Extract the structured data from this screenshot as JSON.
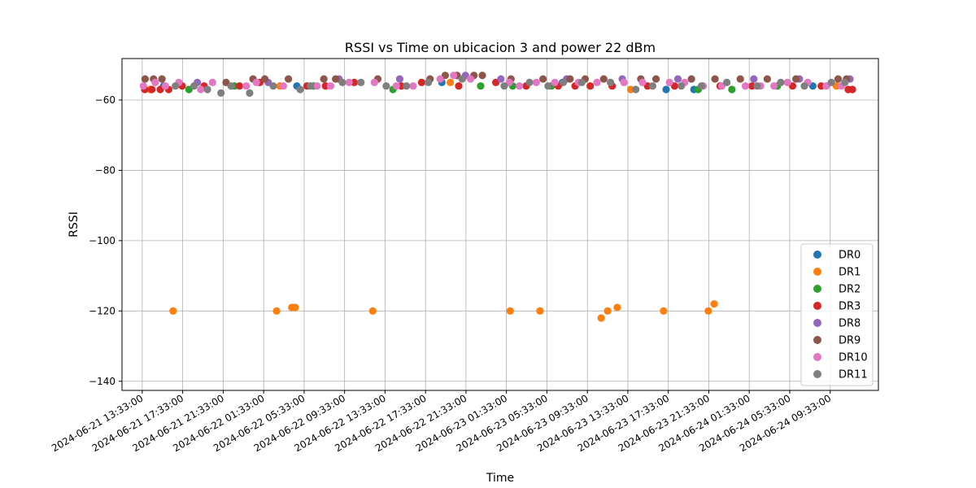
{
  "chart_data": {
    "type": "scatter",
    "title": "RSSI vs Time on ubicacion 3 and power 22 dBm",
    "xlabel": "Time",
    "ylabel": "RSSI",
    "ylim": [
      -142.6,
      -48.2
    ],
    "yticks": [
      -60,
      -80,
      -100,
      -120,
      -140
    ],
    "xlim": [
      "2024-06-21 11:33:00",
      "2024-06-24 14:19:00"
    ],
    "xticks": [
      "2024-06-21 13:33:00",
      "2024-06-21 17:33:00",
      "2024-06-21 21:33:00",
      "2024-06-22 01:33:00",
      "2024-06-22 05:33:00",
      "2024-06-22 09:33:00",
      "2024-06-22 13:33:00",
      "2024-06-22 17:33:00",
      "2024-06-22 21:33:00",
      "2024-06-23 01:33:00",
      "2024-06-23 05:33:00",
      "2024-06-23 09:33:00",
      "2024-06-23 13:33:00",
      "2024-06-23 17:33:00",
      "2024-06-23 21:33:00",
      "2024-06-24 01:33:00",
      "2024-06-24 05:33:00",
      "2024-06-24 09:33:00"
    ],
    "grid": true,
    "legend_position": "lower-right",
    "series": [
      {
        "name": "DR0",
        "color": "#1f77b4",
        "points": [
          [
            "2024-06-21 15:40:00",
            -56
          ],
          [
            "2024-06-22 04:50:00",
            -56
          ],
          [
            "2024-06-22 19:10:00",
            -55
          ],
          [
            "2024-06-23 07:05:00",
            -55
          ],
          [
            "2024-06-23 17:20:00",
            -57
          ],
          [
            "2024-06-23 20:05:00",
            -57
          ],
          [
            "2024-06-24 07:50:00",
            -56
          ]
        ]
      },
      {
        "name": "DR1",
        "color": "#ff7f0e",
        "points": [
          [
            "2024-06-21 16:36:00",
            -120
          ],
          [
            "2024-06-22 02:50:00",
            -120
          ],
          [
            "2024-06-22 04:20:00",
            -119
          ],
          [
            "2024-06-22 04:40:00",
            -119
          ],
          [
            "2024-06-22 12:20:00",
            -120
          ],
          [
            "2024-06-23 01:55:00",
            -120
          ],
          [
            "2024-06-23 04:52:00",
            -120
          ],
          [
            "2024-06-23 10:55:00",
            -122
          ],
          [
            "2024-06-23 11:33:00",
            -120
          ],
          [
            "2024-06-23 12:30:00",
            -119
          ],
          [
            "2024-06-23 17:05:00",
            -120
          ],
          [
            "2024-06-23 21:30:00",
            -120
          ],
          [
            "2024-06-23 22:05:00",
            -118
          ],
          [
            "2024-06-21 14:20:00",
            -57
          ],
          [
            "2024-06-22 03:10:00",
            -56
          ],
          [
            "2024-06-22 20:00:00",
            -55
          ],
          [
            "2024-06-23 13:50:00",
            -57
          ],
          [
            "2024-06-24 10:10:00",
            -56
          ]
        ]
      },
      {
        "name": "DR2",
        "color": "#2ca02c",
        "points": [
          [
            "2024-06-21 18:10:00",
            -57
          ],
          [
            "2024-06-21 22:40:00",
            -56
          ],
          [
            "2024-06-22 06:30:00",
            -56
          ],
          [
            "2024-06-22 14:20:00",
            -57
          ],
          [
            "2024-06-22 23:00:00",
            -56
          ],
          [
            "2024-06-23 02:10:00",
            -56
          ],
          [
            "2024-06-23 06:00:00",
            -56
          ],
          [
            "2024-06-23 20:30:00",
            -57
          ],
          [
            "2024-06-23 23:50:00",
            -57
          ],
          [
            "2024-06-24 04:20:00",
            -56
          ]
        ]
      },
      {
        "name": "DR3",
        "color": "#d62728",
        "points": [
          [
            "2024-06-21 13:48:00",
            -57
          ],
          [
            "2024-06-21 14:30:00",
            -57
          ],
          [
            "2024-06-21 15:20:00",
            -57
          ],
          [
            "2024-06-21 16:10:00",
            -57
          ],
          [
            "2024-06-21 17:30:00",
            -56
          ],
          [
            "2024-06-21 19:40:00",
            -56
          ],
          [
            "2024-06-21 23:10:00",
            -56
          ],
          [
            "2024-06-22 01:10:00",
            -55
          ],
          [
            "2024-06-22 05:50:00",
            -56
          ],
          [
            "2024-06-22 07:40:00",
            -56
          ],
          [
            "2024-06-22 10:30:00",
            -55
          ],
          [
            "2024-06-22 15:10:00",
            -56
          ],
          [
            "2024-06-22 17:10:00",
            -55
          ],
          [
            "2024-06-22 20:50:00",
            -56
          ],
          [
            "2024-06-23 00:30:00",
            -55
          ],
          [
            "2024-06-23 03:30:00",
            -56
          ],
          [
            "2024-06-23 06:40:00",
            -56
          ],
          [
            "2024-06-23 08:20:00",
            -56
          ],
          [
            "2024-06-23 09:50:00",
            -56
          ],
          [
            "2024-06-23 12:00:00",
            -56
          ],
          [
            "2024-06-23 15:30:00",
            -56
          ],
          [
            "2024-06-23 18:10:00",
            -56
          ],
          [
            "2024-06-23 22:40:00",
            -56
          ],
          [
            "2024-06-24 01:50:00",
            -56
          ],
          [
            "2024-06-24 05:50:00",
            -56
          ],
          [
            "2024-06-24 08:40:00",
            -56
          ],
          [
            "2024-06-24 11:45:00",
            -57
          ],
          [
            "2024-06-24 11:20:00",
            -57
          ]
        ]
      },
      {
        "name": "DR8",
        "color": "#9467bd",
        "points": [
          [
            "2024-06-21 19:00:00",
            -55
          ],
          [
            "2024-06-22 02:00:00",
            -55
          ],
          [
            "2024-06-22 09:00:00",
            -54
          ],
          [
            "2024-06-22 15:00:00",
            -54
          ],
          [
            "2024-06-22 21:30:00",
            -53
          ],
          [
            "2024-06-23 01:00:00",
            -54
          ],
          [
            "2024-06-23 07:30:00",
            -54
          ],
          [
            "2024-06-23 13:00:00",
            -54
          ],
          [
            "2024-06-23 18:30:00",
            -54
          ],
          [
            "2024-06-24 02:00:00",
            -54
          ],
          [
            "2024-06-24 06:30:00",
            -54
          ],
          [
            "2024-06-24 11:30:00",
            -54
          ]
        ]
      },
      {
        "name": "DR9",
        "color": "#8c564b",
        "points": [
          [
            "2024-06-21 13:50:00",
            -54
          ],
          [
            "2024-06-21 14:40:00",
            -54
          ],
          [
            "2024-06-21 15:30:00",
            -54
          ],
          [
            "2024-06-21 21:50:00",
            -55
          ],
          [
            "2024-06-22 00:30:00",
            -54
          ],
          [
            "2024-06-22 01:40:00",
            -54
          ],
          [
            "2024-06-22 04:00:00",
            -54
          ],
          [
            "2024-06-22 07:30:00",
            -54
          ],
          [
            "2024-06-22 08:40:00",
            -54
          ],
          [
            "2024-06-22 12:50:00",
            -54
          ],
          [
            "2024-06-22 18:00:00",
            -54
          ],
          [
            "2024-06-22 19:30:00",
            -53
          ],
          [
            "2024-06-22 20:40:00",
            -53
          ],
          [
            "2024-06-22 22:20:00",
            -53
          ],
          [
            "2024-06-22 23:10:00",
            -53
          ],
          [
            "2024-06-23 02:00:00",
            -54
          ],
          [
            "2024-06-23 05:10:00",
            -54
          ],
          [
            "2024-06-23 07:50:00",
            -54
          ],
          [
            "2024-06-23 09:20:00",
            -54
          ],
          [
            "2024-06-23 11:10:00",
            -54
          ],
          [
            "2024-06-23 14:50:00",
            -54
          ],
          [
            "2024-06-23 16:20:00",
            -54
          ],
          [
            "2024-06-23 19:50:00",
            -54
          ],
          [
            "2024-06-23 22:10:00",
            -54
          ],
          [
            "2024-06-24 00:40:00",
            -54
          ],
          [
            "2024-06-24 03:20:00",
            -54
          ],
          [
            "2024-06-24 06:10:00",
            -54
          ],
          [
            "2024-06-24 10:20:00",
            -54
          ],
          [
            "2024-06-24 11:10:00",
            -54
          ]
        ]
      },
      {
        "name": "DR10",
        "color": "#e377c2",
        "points": [
          [
            "2024-06-21 13:40:00",
            -56
          ],
          [
            "2024-06-21 14:50:00",
            -55
          ],
          [
            "2024-06-21 15:50:00",
            -56
          ],
          [
            "2024-06-21 17:10:00",
            -55
          ],
          [
            "2024-06-21 19:20:00",
            -57
          ],
          [
            "2024-06-21 20:30:00",
            -55
          ],
          [
            "2024-06-21 23:50:00",
            -56
          ],
          [
            "2024-06-22 00:50:00",
            -55
          ],
          [
            "2024-06-22 03:30:00",
            -56
          ],
          [
            "2024-06-22 06:50:00",
            -56
          ],
          [
            "2024-06-22 08:10:00",
            -56
          ],
          [
            "2024-06-22 10:00:00",
            -55
          ],
          [
            "2024-06-22 12:30:00",
            -55
          ],
          [
            "2024-06-22 14:40:00",
            -56
          ],
          [
            "2024-06-22 16:20:00",
            -56
          ],
          [
            "2024-06-22 19:00:00",
            -54
          ],
          [
            "2024-06-22 20:20:00",
            -53
          ],
          [
            "2024-06-22 22:00:00",
            -54
          ],
          [
            "2024-06-23 01:50:00",
            -55
          ],
          [
            "2024-06-23 02:50:00",
            -56
          ],
          [
            "2024-06-23 04:30:00",
            -55
          ],
          [
            "2024-06-23 06:20:00",
            -55
          ],
          [
            "2024-06-23 08:40:00",
            -55
          ],
          [
            "2024-06-23 10:30:00",
            -55
          ],
          [
            "2024-06-23 13:10:00",
            -55
          ],
          [
            "2024-06-23 15:00:00",
            -55
          ],
          [
            "2024-06-23 17:40:00",
            -55
          ],
          [
            "2024-06-23 19:10:00",
            -55
          ],
          [
            "2024-06-23 21:00:00",
            -56
          ],
          [
            "2024-06-23 22:50:00",
            -56
          ],
          [
            "2024-06-24 01:10:00",
            -56
          ],
          [
            "2024-06-24 02:40:00",
            -56
          ],
          [
            "2024-06-24 04:00:00",
            -56
          ],
          [
            "2024-06-24 05:20:00",
            -55
          ],
          [
            "2024-06-24 07:20:00",
            -55
          ],
          [
            "2024-06-24 09:10:00",
            -56
          ],
          [
            "2024-06-24 10:40:00",
            -56
          ]
        ]
      },
      {
        "name": "DR11",
        "color": "#7f7f7f",
        "points": [
          [
            "2024-06-21 16:50:00",
            -56
          ],
          [
            "2024-06-21 18:40:00",
            -56
          ],
          [
            "2024-06-21 20:00:00",
            -57
          ],
          [
            "2024-06-21 21:20:00",
            -58
          ],
          [
            "2024-06-21 22:20:00",
            -56
          ],
          [
            "2024-06-22 00:10:00",
            -58
          ],
          [
            "2024-06-22 02:30:00",
            -56
          ],
          [
            "2024-06-22 05:10:00",
            -57
          ],
          [
            "2024-06-22 06:10:00",
            -56
          ],
          [
            "2024-06-22 09:20:00",
            -55
          ],
          [
            "2024-06-22 11:10:00",
            -55
          ],
          [
            "2024-06-22 13:40:00",
            -56
          ],
          [
            "2024-06-22 15:40:00",
            -56
          ],
          [
            "2024-06-22 17:50:00",
            -55
          ],
          [
            "2024-06-22 21:10:00",
            -54
          ],
          [
            "2024-06-23 01:20:00",
            -56
          ],
          [
            "2024-06-23 03:50:00",
            -55
          ],
          [
            "2024-06-23 05:40:00",
            -56
          ],
          [
            "2024-06-23 07:10:00",
            -55
          ],
          [
            "2024-06-23 09:00:00",
            -55
          ],
          [
            "2024-06-23 11:50:00",
            -55
          ],
          [
            "2024-06-23 14:20:00",
            -57
          ],
          [
            "2024-06-23 16:00:00",
            -56
          ],
          [
            "2024-06-23 18:50:00",
            -56
          ],
          [
            "2024-06-23 20:50:00",
            -56
          ],
          [
            "2024-06-23 23:20:00",
            -55
          ],
          [
            "2024-06-24 02:20:00",
            -56
          ],
          [
            "2024-06-24 04:40:00",
            -55
          ],
          [
            "2024-06-24 07:00:00",
            -56
          ],
          [
            "2024-06-24 09:40:00",
            -55
          ],
          [
            "2024-06-24 11:00:00",
            -55
          ]
        ]
      }
    ]
  }
}
